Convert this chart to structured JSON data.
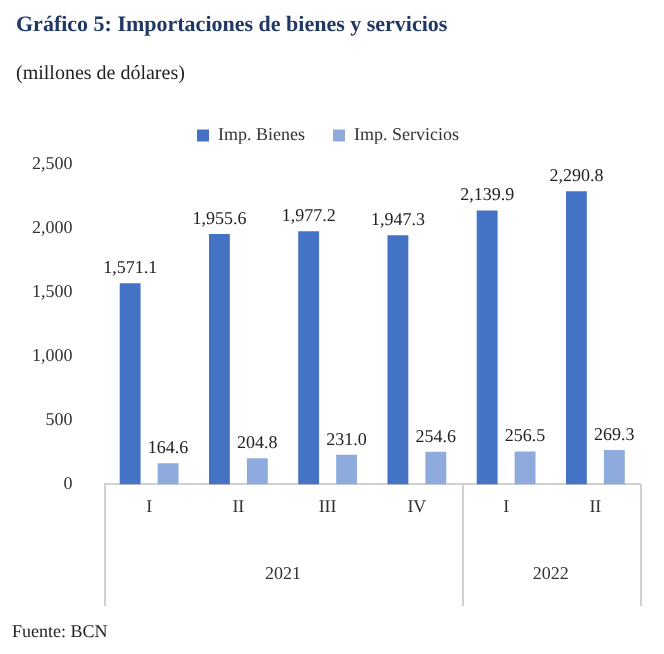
{
  "chart_data": {
    "type": "bar",
    "title": "Gráfico 5: Importaciones de bienes y servicios",
    "subtitle": "(millones de dólares)",
    "categories": [
      "I",
      "II",
      "III",
      "IV",
      "I",
      "II"
    ],
    "series": [
      {
        "name": "Imp. Bienes",
        "color": "#4472c4",
        "values": [
          1571.1,
          1955.6,
          1977.2,
          1947.3,
          2139.9,
          2290.8
        ],
        "value_labels": [
          "1,571.1",
          "1,955.6",
          "1,977.2",
          "1,947.3",
          "2,139.9",
          "2,290.8"
        ]
      },
      {
        "name": "Imp. Servicios",
        "color": "#8faadc",
        "values": [
          164.6,
          204.8,
          231.0,
          254.6,
          256.5,
          269.3
        ],
        "value_labels": [
          "164.6",
          "204.8",
          "231.0",
          "254.6",
          "256.5",
          "269.3"
        ]
      }
    ],
    "ylim": [
      0,
      2500
    ],
    "yticks": [
      {
        "value": 0,
        "label": "0"
      },
      {
        "value": 500,
        "label": "500"
      },
      {
        "value": 1000,
        "label": "1,000"
      },
      {
        "value": 1500,
        "label": "1,500"
      },
      {
        "value": 2000,
        "label": "2,000"
      },
      {
        "value": 2500,
        "label": "2,500"
      }
    ],
    "grid": false,
    "legend": "top",
    "annotations": [
      "2021",
      "2022",
      "Fuente: BCN"
    ]
  }
}
